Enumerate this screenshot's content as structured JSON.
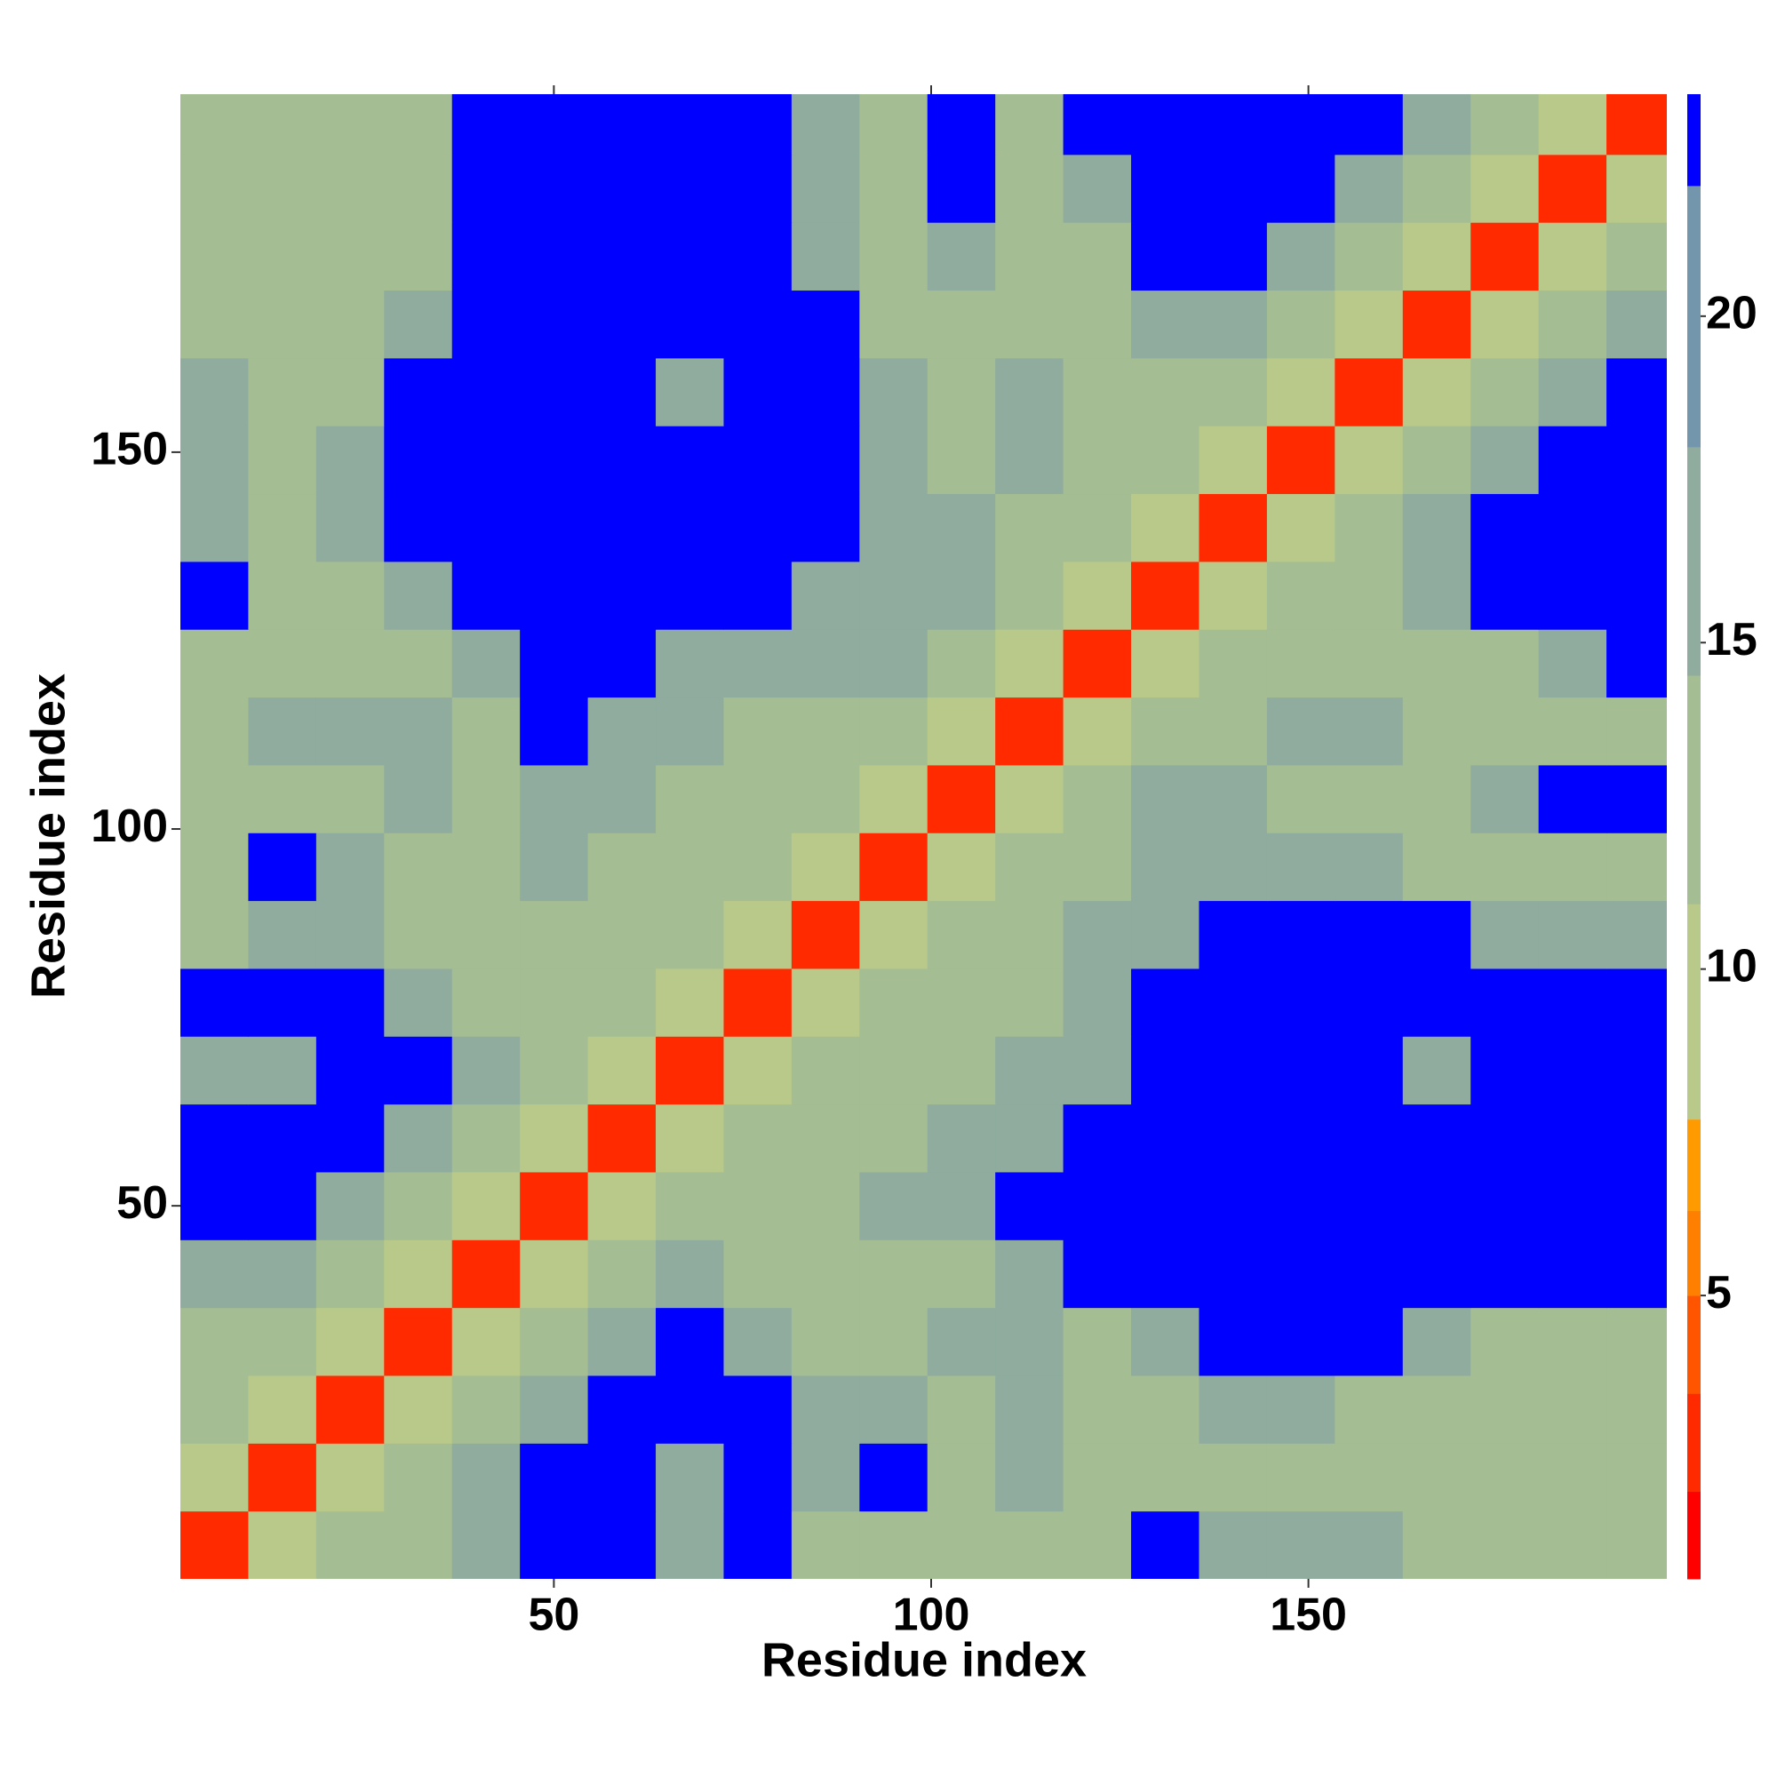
{
  "chart_data": {
    "type": "heatmap",
    "xlabel": "Residue index",
    "ylabel": "Residue index",
    "xlim": [
      0.5,
      197.5
    ],
    "ylim": [
      0.5,
      197.5
    ],
    "xticks": [
      50,
      100,
      150
    ],
    "yticks": [
      50,
      100,
      150
    ],
    "bins": [
      0.5,
      9.5,
      18.5,
      27.5,
      36.5,
      45.5,
      54.5,
      63.5,
      72.5,
      81.5,
      90.5,
      99.5,
      108.5,
      117.5,
      126.5,
      135.5,
      144.5,
      153.5,
      162.5,
      171.5,
      180.5,
      189.5,
      198.5
    ],
    "z": [
      [
        2,
        8,
        12,
        12,
        16,
        24,
        24,
        16,
        24,
        12,
        12,
        12,
        12,
        12,
        24,
        16,
        16,
        16,
        12,
        12,
        12,
        12
      ],
      [
        8,
        2,
        8,
        12,
        16,
        24,
        24,
        16,
        24,
        16,
        24,
        12,
        16,
        12,
        12,
        12,
        12,
        12,
        12,
        12,
        12,
        12
      ],
      [
        12,
        8,
        2,
        8,
        12,
        16,
        24,
        24,
        24,
        16,
        16,
        12,
        16,
        12,
        12,
        16,
        16,
        12,
        12,
        12,
        12,
        12
      ],
      [
        12,
        12,
        8,
        2,
        8,
        12,
        16,
        24,
        16,
        12,
        12,
        16,
        16,
        12,
        16,
        24,
        24,
        24,
        16,
        12,
        12,
        12
      ],
      [
        16,
        16,
        12,
        8,
        2,
        8,
        12,
        16,
        12,
        12,
        12,
        12,
        16,
        24,
        24,
        24,
        24,
        24,
        24,
        24,
        24,
        24
      ],
      [
        24,
        24,
        16,
        12,
        8,
        2,
        8,
        12,
        12,
        12,
        16,
        16,
        24,
        24,
        24,
        24,
        24,
        24,
        24,
        24,
        24,
        24
      ],
      [
        24,
        24,
        24,
        16,
        12,
        8,
        2,
        8,
        12,
        12,
        12,
        16,
        16,
        24,
        24,
        24,
        24,
        24,
        24,
        24,
        24,
        24
      ],
      [
        16,
        16,
        24,
        24,
        16,
        12,
        8,
        2,
        8,
        12,
        12,
        12,
        16,
        16,
        24,
        24,
        24,
        24,
        16,
        24,
        24,
        24
      ],
      [
        24,
        24,
        24,
        16,
        12,
        12,
        12,
        8,
        2,
        8,
        12,
        12,
        12,
        16,
        24,
        24,
        24,
        24,
        24,
        24,
        24,
        24
      ],
      [
        12,
        16,
        16,
        12,
        12,
        12,
        12,
        12,
        8,
        2,
        8,
        12,
        12,
        16,
        16,
        24,
        24,
        24,
        24,
        16,
        16,
        16
      ],
      [
        12,
        24,
        16,
        12,
        12,
        16,
        12,
        12,
        12,
        8,
        2,
        8,
        12,
        12,
        16,
        16,
        16,
        16,
        12,
        12,
        12,
        12
      ],
      [
        12,
        12,
        12,
        16,
        12,
        16,
        16,
        12,
        12,
        12,
        8,
        2,
        8,
        12,
        16,
        16,
        12,
        12,
        12,
        16,
        24,
        24
      ],
      [
        12,
        16,
        16,
        16,
        12,
        24,
        16,
        16,
        12,
        12,
        12,
        8,
        2,
        8,
        12,
        12,
        16,
        16,
        12,
        12,
        12,
        12
      ],
      [
        12,
        12,
        12,
        12,
        16,
        24,
        24,
        16,
        16,
        16,
        16,
        12,
        8,
        2,
        8,
        12,
        12,
        12,
        12,
        12,
        16,
        24
      ],
      [
        24,
        12,
        12,
        16,
        24,
        24,
        24,
        24,
        24,
        16,
        16,
        16,
        12,
        8,
        2,
        8,
        12,
        12,
        16,
        24,
        24,
        24
      ],
      [
        16,
        12,
        16,
        24,
        24,
        24,
        24,
        24,
        24,
        24,
        16,
        16,
        12,
        12,
        8,
        2,
        8,
        12,
        16,
        24,
        24,
        24
      ],
      [
        16,
        12,
        16,
        24,
        24,
        24,
        24,
        24,
        24,
        24,
        16,
        12,
        16,
        12,
        12,
        8,
        2,
        8,
        12,
        16,
        24,
        24
      ],
      [
        16,
        12,
        12,
        24,
        24,
        24,
        24,
        16,
        24,
        24,
        16,
        12,
        16,
        12,
        12,
        12,
        8,
        2,
        8,
        12,
        16,
        24
      ],
      [
        12,
        12,
        12,
        16,
        24,
        24,
        24,
        24,
        24,
        24,
        12,
        12,
        12,
        12,
        16,
        16,
        12,
        8,
        2,
        8,
        12,
        16
      ],
      [
        12,
        12,
        12,
        12,
        24,
        24,
        24,
        24,
        24,
        16,
        12,
        16,
        12,
        12,
        24,
        24,
        16,
        12,
        8,
        2,
        8,
        12
      ],
      [
        12,
        12,
        12,
        12,
        24,
        24,
        24,
        24,
        24,
        16,
        12,
        24,
        12,
        16,
        24,
        24,
        24,
        16,
        12,
        8,
        2,
        8
      ],
      [
        12,
        12,
        12,
        12,
        24,
        24,
        24,
        24,
        24,
        16,
        12,
        24,
        12,
        24,
        24,
        24,
        24,
        24,
        16,
        12,
        8,
        2
      ]
    ],
    "colorbar": {
      "bounds": [
        0.66,
        2,
        3.5,
        5,
        6.3,
        7.7,
        11,
        14.5,
        18,
        22,
        23.4
      ],
      "colors": [
        "#ff0000",
        "#ff2a00",
        "#ff5500",
        "#ff7f00",
        "#ff9a00",
        "#b8c98a",
        "#a5bd92",
        "#8fac9e",
        "#7496ad",
        "#0000ff"
      ],
      "ticks": [
        5,
        10,
        15,
        20
      ]
    }
  }
}
